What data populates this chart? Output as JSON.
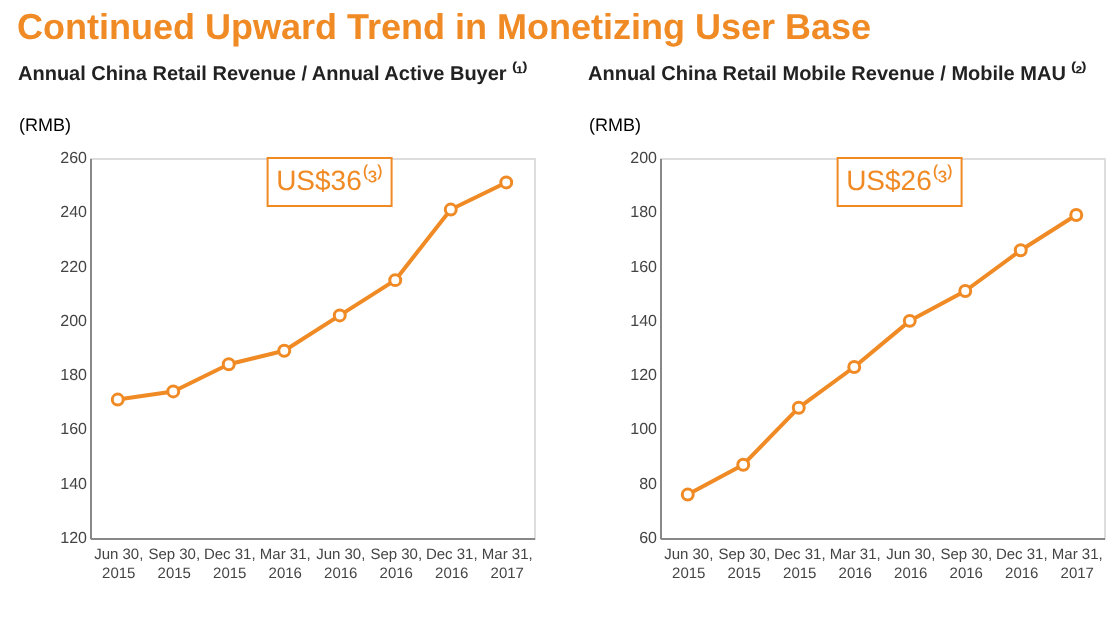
{
  "chart_data": [
    {
      "type": "line",
      "title": "Continued Upward Trend in Monetizing User Base",
      "subtitle": "Annual China Retail Revenue / Annual Active Buyer ⁽¹⁾",
      "ylabel": "(RMB)",
      "categories": [
        "Jun 30,\n2015",
        "Sep 30,\n2015",
        "Dec 31,\n2015",
        "Mar 31,\n2016",
        "Jun 30,\n2016",
        "Sep 30,\n2016",
        "Dec 31,\n2016",
        "Mar 31,\n2017"
      ],
      "series": [
        {
          "color": "#f08a24",
          "values": [
            171,
            174,
            184,
            189,
            202,
            215,
            241,
            251
          ]
        }
      ],
      "ylim": [
        120,
        260
      ],
      "yticks": [
        120,
        140,
        160,
        180,
        200,
        220,
        240,
        260
      ],
      "grid": false,
      "marker": "circle",
      "line_style": "solid",
      "annotations": [
        "US$36⁽³⁾"
      ]
    },
    {
      "type": "line",
      "subtitle": "Annual China Retail Mobile Revenue / Mobile MAU ⁽²⁾",
      "ylabel": "(RMB)",
      "categories": [
        "Jun 30,\n2015",
        "Sep 30,\n2015",
        "Dec 31,\n2015",
        "Mar 31,\n2016",
        "Jun 30,\n2016",
        "Sep 30,\n2016",
        "Dec 31,\n2016",
        "Mar 31,\n2017"
      ],
      "series": [
        {
          "color": "#f08a24",
          "values": [
            76,
            87,
            108,
            123,
            140,
            151,
            166,
            179
          ]
        }
      ],
      "ylim": [
        60,
        200
      ],
      "yticks": [
        60,
        80,
        100,
        120,
        140,
        160,
        180,
        200
      ],
      "grid": false,
      "marker": "circle",
      "line_style": "solid",
      "annotations": [
        "US$26⁽³⁾"
      ]
    }
  ]
}
